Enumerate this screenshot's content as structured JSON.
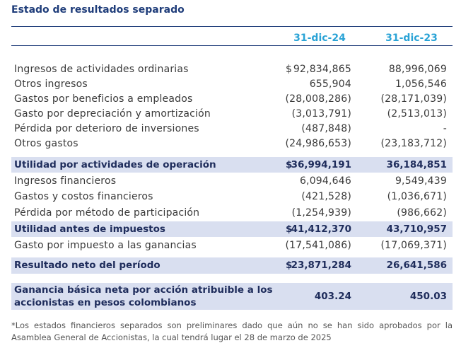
{
  "title": "Estado de resultados separado",
  "columns": [
    "31-dic-24",
    "31-dic-23"
  ],
  "rows": [
    {
      "label": "Ingresos de actividades ordinarias",
      "cur": "$",
      "v1": "92,834,865",
      "v2": "88,996,069"
    },
    {
      "label": "Otros ingresos",
      "cur": "",
      "v1": "655,904",
      "v2": "1,056,546"
    },
    {
      "label": "Gastos por beneficios a empleados",
      "cur": "",
      "v1": "(28,008,286)",
      "v2": "(28,171,039)"
    },
    {
      "label": "Gasto por depreciación y amortización",
      "cur": "",
      "v1": "(3,013,791)",
      "v2": "(2,513,013)"
    },
    {
      "label": "Pérdida por deterioro de inversiones",
      "cur": "",
      "v1": "(487,848)",
      "v2": "-"
    },
    {
      "label": "Otros gastos",
      "cur": "",
      "v1": "(24,986,653)",
      "v2": "(23,183,712)"
    },
    {
      "label": "Utilidad por actividades de operación",
      "cur": "$",
      "v1": "36,994,191",
      "v2": "36,184,851"
    },
    {
      "label": "Ingresos financieros",
      "cur": "",
      "v1": "6,094,646",
      "v2": "9,549,439"
    },
    {
      "label": "Gastos y costos financieros",
      "cur": "",
      "v1": "(421,528)",
      "v2": "(1,036,671)"
    },
    {
      "label": "Pérdida por método de participación",
      "cur": "",
      "v1": "(1,254,939)",
      "v2": "(986,662)"
    },
    {
      "label": "Utilidad antes de impuestos",
      "cur": "$",
      "v1": "41,412,370",
      "v2": "43,710,957"
    },
    {
      "label": "Gasto por impuesto a las ganancias",
      "cur": "",
      "v1": "(17,541,086)",
      "v2": "(17,069,371)"
    },
    {
      "label": "Resultado neto del período",
      "cur": "$",
      "v1": "23,871,284",
      "v2": "26,641,586"
    }
  ],
  "eps": {
    "label_line1": "Ganancia básica neta por acción atribuible a los",
    "label_line2": "accionistas en pesos colombianos",
    "v1": "403.24",
    "v2": "450.03"
  },
  "footnote": "*Los estados financieros separados son preliminares dado que aún no se han sido aprobados por la Asamblea General de Accionistas, la cual tendrá lugar el 28 de marzo de 2025"
}
